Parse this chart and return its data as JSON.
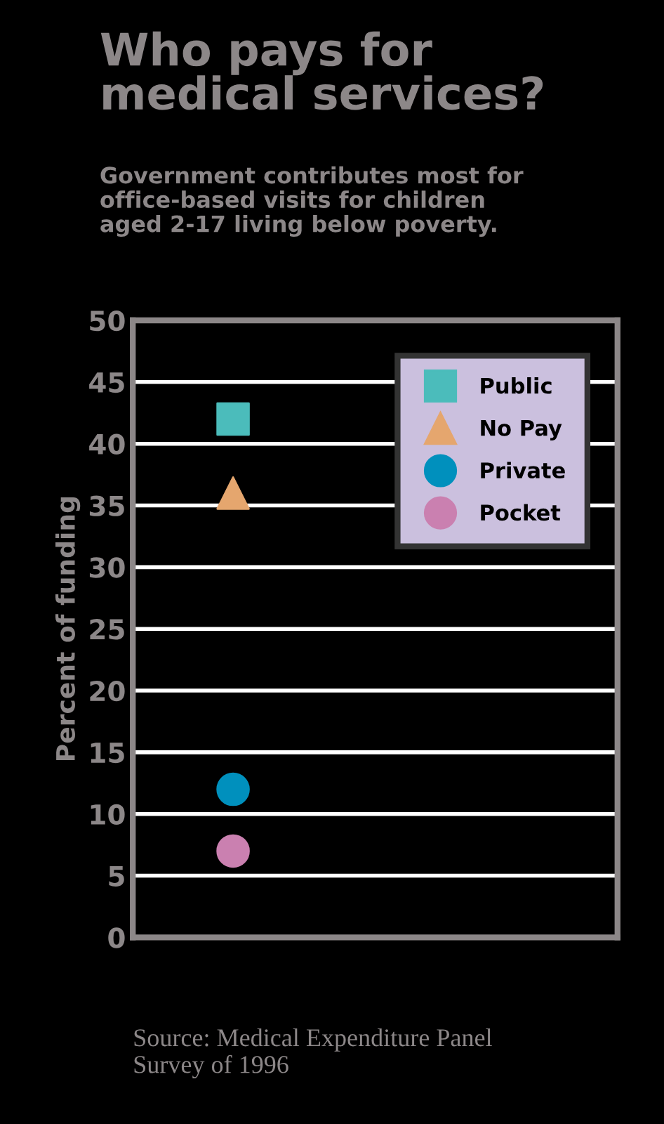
{
  "chart_data": {
    "type": "scatter",
    "title": "Who pays for\nmedical services?",
    "subtitle": "Government contributes most for\noffice-based visits for children\naged 2-17 living below poverty.",
    "ylabel": "Percent of funding",
    "annotations": [
      "Source: Medical Expenditure Panel\nSurvey of 1996"
    ],
    "categories": [
      null
    ],
    "series": [
      {
        "name": "Public",
        "color": "#4bbcbb",
        "marker": "square",
        "values": [
          42
        ]
      },
      {
        "name": "No Pay",
        "color": "#e5a66e",
        "marker": "triangle",
        "values": [
          36
        ]
      },
      {
        "name": "Private",
        "color": "#0090bd",
        "marker": "circle",
        "values": [
          12
        ]
      },
      {
        "name": "Pocket",
        "color": "#ca80b0",
        "marker": "circle",
        "values": [
          7
        ]
      }
    ],
    "ylim": [
      0,
      50
    ],
    "yticks": [
      0,
      5,
      10,
      15,
      20,
      25,
      30,
      35,
      40,
      45,
      50
    ],
    "grid": "y",
    "legend": "top right"
  }
}
